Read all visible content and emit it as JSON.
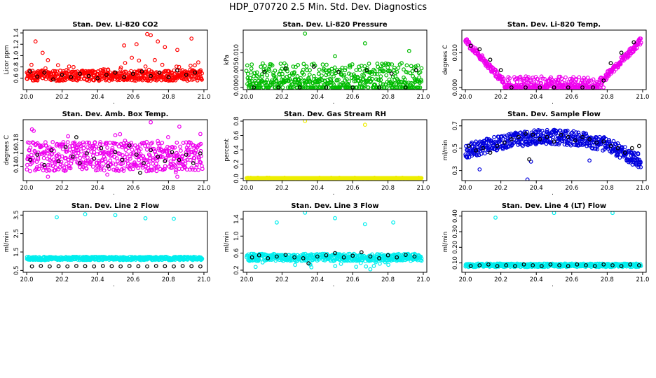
{
  "title": "HDP_070720  2.5 Min. Std. Dev. Diagnostics",
  "chart_data": [
    {
      "type": "scatter",
      "title": "Stan. Dev. Li-820 CO2",
      "ylabel": "Licor ppm",
      "color": "#ff0000",
      "xlim": [
        19.98,
        21.02
      ],
      "ylim": [
        0.4,
        1.45
      ],
      "xticks": [
        "20.0",
        "20.2",
        "20.4",
        "20.6",
        "20.8",
        "21.0"
      ],
      "yticks": [
        0.6,
        0.8,
        1.0,
        1.2,
        1.4
      ],
      "ytick_labels": [
        "0.6",
        "0.8",
        "1.0",
        "1.2",
        "1.4"
      ],
      "black_points": [
        [
          20.02,
          0.72
        ],
        [
          20.06,
          0.63
        ],
        [
          20.1,
          0.7
        ],
        [
          20.15,
          0.58
        ],
        [
          20.2,
          0.66
        ],
        [
          20.25,
          0.62
        ],
        [
          20.3,
          0.68
        ],
        [
          20.35,
          0.64
        ],
        [
          20.4,
          0.6
        ],
        [
          20.45,
          0.66
        ],
        [
          20.5,
          0.7
        ],
        [
          20.55,
          0.62
        ],
        [
          20.6,
          0.68
        ],
        [
          20.65,
          0.72
        ],
        [
          20.7,
          0.64
        ],
        [
          20.75,
          0.7
        ],
        [
          20.8,
          0.62
        ],
        [
          20.85,
          0.74
        ],
        [
          20.9,
          0.66
        ],
        [
          20.95,
          0.7
        ]
      ],
      "outliers": [
        [
          20.05,
          1.25
        ],
        [
          20.09,
          1.05
        ],
        [
          20.12,
          0.92
        ],
        [
          20.55,
          1.18
        ],
        [
          20.62,
          1.2
        ],
        [
          20.68,
          1.38
        ],
        [
          20.7,
          1.36
        ],
        [
          20.74,
          1.25
        ],
        [
          20.78,
          1.15
        ],
        [
          20.85,
          1.1
        ],
        [
          20.93,
          1.3
        ]
      ]
    },
    {
      "type": "scatter",
      "title": "Stan. Dev. Li-820 Pressure",
      "ylabel": "kPa",
      "color": "#00bb00",
      "xlim": [
        19.98,
        21.02
      ],
      "ylim": [
        -0.0006,
        0.0165
      ],
      "xticks": [
        "20.0",
        "20.2",
        "20.4",
        "20.6",
        "20.8",
        "21.0"
      ],
      "yticks": [
        0.0,
        0.005,
        0.01
      ],
      "ytick_labels": [
        "0.000",
        "0.005",
        "0.010"
      ],
      "black_points": [
        [
          20.04,
          0.0
        ],
        [
          20.1,
          0.0045
        ],
        [
          20.18,
          0.0
        ],
        [
          20.22,
          0.0055
        ],
        [
          20.3,
          0.0
        ],
        [
          20.38,
          0.006
        ],
        [
          20.45,
          0.0
        ],
        [
          20.52,
          0.0045
        ],
        [
          20.6,
          0.0
        ],
        [
          20.68,
          0.005
        ],
        [
          20.75,
          0.0
        ],
        [
          20.82,
          0.004
        ],
        [
          20.9,
          0.0
        ],
        [
          20.96,
          0.005
        ]
      ],
      "outliers": [
        [
          20.33,
          0.0155
        ],
        [
          20.67,
          0.0127
        ],
        [
          20.92,
          0.0105
        ],
        [
          20.5,
          0.009
        ]
      ]
    },
    {
      "type": "scatter",
      "title": "Stan. Dev. Li-820 Temp.",
      "ylabel": "degrees C",
      "color": "#ee00ee",
      "xlim": [
        19.98,
        21.02
      ],
      "ylim": [
        -0.0006,
        0.0165
      ],
      "xticks": [
        "20.0",
        "20.2",
        "20.4",
        "20.6",
        "20.8",
        "21.0"
      ],
      "yticks": [
        0.0,
        0.005,
        0.01
      ],
      "ytick_labels": [
        "0.000",
        "",
        "0.010"
      ],
      "black_points": [
        [
          20.03,
          0.012
        ],
        [
          20.08,
          0.011
        ],
        [
          20.14,
          0.008
        ],
        [
          20.2,
          0.005
        ],
        [
          20.26,
          0.0
        ],
        [
          20.34,
          0.0
        ],
        [
          20.42,
          0.0
        ],
        [
          20.5,
          0.0
        ],
        [
          20.58,
          0.0
        ],
        [
          20.66,
          0.0
        ],
        [
          20.72,
          0.0
        ],
        [
          20.78,
          0.002
        ],
        [
          20.82,
          0.007
        ],
        [
          20.88,
          0.01
        ],
        [
          20.95,
          0.013
        ]
      ],
      "outliers": []
    },
    {
      "type": "scatter",
      "title": "Stan. Dev. Amb. Box Temp.",
      "ylabel": "degrees C",
      "color": "#ee00ee",
      "xlim": [
        19.98,
        21.02
      ],
      "ylim": [
        0.118,
        0.212
      ],
      "xticks": [
        "20.0",
        "20.2",
        "20.4",
        "20.6",
        "20.8",
        "21.0"
      ],
      "yticks": [
        0.14,
        0.16,
        0.18
      ],
      "ytick_labels": [
        "0.14",
        "0.16",
        "0.18"
      ],
      "black_points": [
        [
          20.02,
          0.15
        ],
        [
          20.06,
          0.158
        ],
        [
          20.1,
          0.142
        ],
        [
          20.14,
          0.165
        ],
        [
          20.18,
          0.148
        ],
        [
          20.22,
          0.17
        ],
        [
          20.26,
          0.155
        ],
        [
          20.3,
          0.145
        ],
        [
          20.34,
          0.16
        ],
        [
          20.38,
          0.152
        ],
        [
          20.42,
          0.168
        ],
        [
          20.46,
          0.14
        ],
        [
          20.5,
          0.162
        ],
        [
          20.54,
          0.15
        ],
        [
          20.58,
          0.172
        ],
        [
          20.62,
          0.158
        ],
        [
          20.66,
          0.145
        ],
        [
          20.7,
          0.165
        ],
        [
          20.74,
          0.155
        ],
        [
          20.78,
          0.148
        ],
        [
          20.82,
          0.162
        ],
        [
          20.86,
          0.15
        ],
        [
          20.9,
          0.158
        ],
        [
          20.94,
          0.145
        ],
        [
          20.98,
          0.16
        ],
        [
          20.28,
          0.185
        ],
        [
          20.64,
          0.13
        ]
      ],
      "outliers": [
        [
          20.7,
          0.208
        ],
        [
          20.98,
          0.19
        ],
        [
          20.5,
          0.188
        ],
        [
          20.12,
          0.124
        ],
        [
          20.85,
          0.124
        ]
      ]
    },
    {
      "type": "scatter",
      "title": "Stan. Dev. Gas Stream RH",
      "ylabel": "percent",
      "color": "#eeee00",
      "xlim": [
        19.98,
        21.02
      ],
      "ylim": [
        -0.03,
        0.82
      ],
      "xticks": [
        "20.0",
        "20.2",
        "20.4",
        "20.6",
        "20.8",
        "21.0"
      ],
      "yticks": [
        0.0,
        0.2,
        0.4,
        0.6,
        0.8
      ],
      "ytick_labels": [
        "0.0",
        "0.2",
        "0.4",
        "0.6",
        "0.8"
      ],
      "black_points": [],
      "outliers": [
        [
          20.33,
          0.8
        ],
        [
          20.67,
          0.75
        ]
      ]
    },
    {
      "type": "scatter",
      "title": "Stan. Dev. Sample Flow",
      "ylabel": "ml/min",
      "color": "#0000dd",
      "xlim": [
        19.98,
        21.02
      ],
      "ylim": [
        0.21,
        0.755
      ],
      "xticks": [
        "20.0",
        "20.2",
        "20.4",
        "20.6",
        "20.8",
        "21.0"
      ],
      "yticks": [
        0.3,
        0.5,
        0.7
      ],
      "ytick_labels": [
        "0.3",
        "0.5",
        "0.7"
      ],
      "black_points": [
        [
          20.02,
          0.52
        ],
        [
          20.06,
          0.48
        ],
        [
          20.1,
          0.5
        ],
        [
          20.14,
          0.46
        ],
        [
          20.18,
          0.52
        ],
        [
          20.22,
          0.55
        ],
        [
          20.26,
          0.58
        ],
        [
          20.3,
          0.6
        ],
        [
          20.34,
          0.63
        ],
        [
          20.36,
          0.4
        ],
        [
          20.38,
          0.62
        ],
        [
          20.42,
          0.58
        ],
        [
          20.46,
          0.6
        ],
        [
          20.5,
          0.56
        ],
        [
          20.54,
          0.62
        ],
        [
          20.58,
          0.6
        ],
        [
          20.62,
          0.57
        ],
        [
          20.66,
          0.6
        ],
        [
          20.7,
          0.58
        ],
        [
          20.74,
          0.55
        ],
        [
          20.78,
          0.56
        ],
        [
          20.82,
          0.52
        ],
        [
          20.86,
          0.5
        ],
        [
          20.9,
          0.46
        ],
        [
          20.94,
          0.5
        ],
        [
          20.98,
          0.52
        ]
      ],
      "outliers": [
        [
          20.08,
          0.31
        ],
        [
          20.35,
          0.22
        ],
        [
          20.37,
          0.38
        ],
        [
          20.7,
          0.39
        ],
        [
          20.96,
          0.36
        ]
      ]
    },
    {
      "type": "scatter",
      "title": "Stan. Dev. Line 2 Flow",
      "ylabel": "ml/min",
      "color": "#00eeee",
      "xlim": [
        19.98,
        21.02
      ],
      "ylim": [
        0.4,
        3.7
      ],
      "xticks": [
        "20.0",
        "20.2",
        "20.4",
        "20.6",
        "20.8",
        "21.0"
      ],
      "yticks": [
        0.5,
        1.5,
        2.5,
        3.5
      ],
      "ytick_labels": [
        "0.5",
        "1.5",
        "2.5",
        "3.5"
      ],
      "black_points": [
        [
          20.03,
          0.72
        ],
        [
          20.08,
          0.74
        ],
        [
          20.13,
          0.72
        ],
        [
          20.18,
          0.73
        ],
        [
          20.23,
          0.72
        ],
        [
          20.28,
          0.74
        ],
        [
          20.33,
          0.73
        ],
        [
          20.38,
          0.72
        ],
        [
          20.43,
          0.74
        ],
        [
          20.48,
          0.73
        ],
        [
          20.53,
          0.72
        ],
        [
          20.58,
          0.74
        ],
        [
          20.63,
          0.73
        ],
        [
          20.68,
          0.72
        ],
        [
          20.73,
          0.74
        ],
        [
          20.78,
          0.73
        ],
        [
          20.83,
          0.72
        ],
        [
          20.88,
          0.74
        ],
        [
          20.93,
          0.73
        ],
        [
          20.98,
          0.72
        ]
      ],
      "outliers": [
        [
          20.17,
          3.38
        ],
        [
          20.33,
          3.55
        ],
        [
          20.5,
          3.5
        ],
        [
          20.67,
          3.33
        ],
        [
          20.83,
          3.3
        ]
      ]
    },
    {
      "type": "scatter",
      "title": "Stan. Dev. Line 3 Flow",
      "ylabel": "ml/min",
      "color": "#00eeee",
      "xlim": [
        19.98,
        21.02
      ],
      "ylim": [
        0.15,
        1.58
      ],
      "xticks": [
        "20.0",
        "20.2",
        "20.4",
        "20.6",
        "20.8",
        "21.0"
      ],
      "yticks": [
        0.2,
        0.6,
        1.0,
        1.4
      ],
      "ytick_labels": [
        "0.2",
        "0.6",
        "1.0",
        "1.4"
      ],
      "black_points": [
        [
          20.03,
          0.5
        ],
        [
          20.07,
          0.55
        ],
        [
          20.12,
          0.48
        ],
        [
          20.17,
          0.52
        ],
        [
          20.22,
          0.56
        ],
        [
          20.27,
          0.5
        ],
        [
          20.32,
          0.48
        ],
        [
          20.35,
          0.36
        ],
        [
          20.4,
          0.52
        ],
        [
          20.45,
          0.55
        ],
        [
          20.5,
          0.6
        ],
        [
          20.55,
          0.5
        ],
        [
          20.6,
          0.54
        ],
        [
          20.65,
          0.62
        ],
        [
          20.7,
          0.52
        ],
        [
          20.75,
          0.48
        ],
        [
          20.8,
          0.55
        ],
        [
          20.85,
          0.5
        ],
        [
          20.9,
          0.56
        ],
        [
          20.95,
          0.52
        ]
      ],
      "outliers": [
        [
          20.17,
          1.32
        ],
        [
          20.33,
          1.55
        ],
        [
          20.5,
          1.42
        ],
        [
          20.67,
          1.28
        ],
        [
          20.83,
          1.32
        ],
        [
          20.7,
          0.22
        ],
        [
          20.72,
          0.3
        ],
        [
          20.62,
          0.28
        ]
      ]
    },
    {
      "type": "scatter",
      "title": "Stan. Dev. Line 4 (LT) Flow",
      "ylabel": "ml/min",
      "color": "#00eeee",
      "xlim": [
        19.98,
        21.02
      ],
      "ylim": [
        0.04,
        0.43
      ],
      "xticks": [
        "20.0",
        "20.2",
        "20.4",
        "20.6",
        "20.8",
        "21.0"
      ],
      "yticks": [
        0.1,
        0.2,
        0.3,
        0.4
      ],
      "ytick_labels": [
        "0.10",
        "0.20",
        "0.30",
        "0.40"
      ],
      "black_points": [
        [
          20.03,
          0.08
        ],
        [
          20.08,
          0.085
        ],
        [
          20.13,
          0.09
        ],
        [
          20.18,
          0.08
        ],
        [
          20.23,
          0.085
        ],
        [
          20.28,
          0.08
        ],
        [
          20.33,
          0.09
        ],
        [
          20.38,
          0.085
        ],
        [
          20.43,
          0.08
        ],
        [
          20.48,
          0.09
        ],
        [
          20.53,
          0.085
        ],
        [
          20.58,
          0.08
        ],
        [
          20.63,
          0.09
        ],
        [
          20.68,
          0.085
        ],
        [
          20.73,
          0.08
        ],
        [
          20.78,
          0.09
        ],
        [
          20.83,
          0.085
        ],
        [
          20.88,
          0.08
        ],
        [
          20.93,
          0.09
        ],
        [
          20.98,
          0.085
        ]
      ],
      "outliers": [
        [
          20.17,
          0.39
        ],
        [
          20.5,
          0.42
        ],
        [
          20.83,
          0.42
        ]
      ]
    }
  ]
}
